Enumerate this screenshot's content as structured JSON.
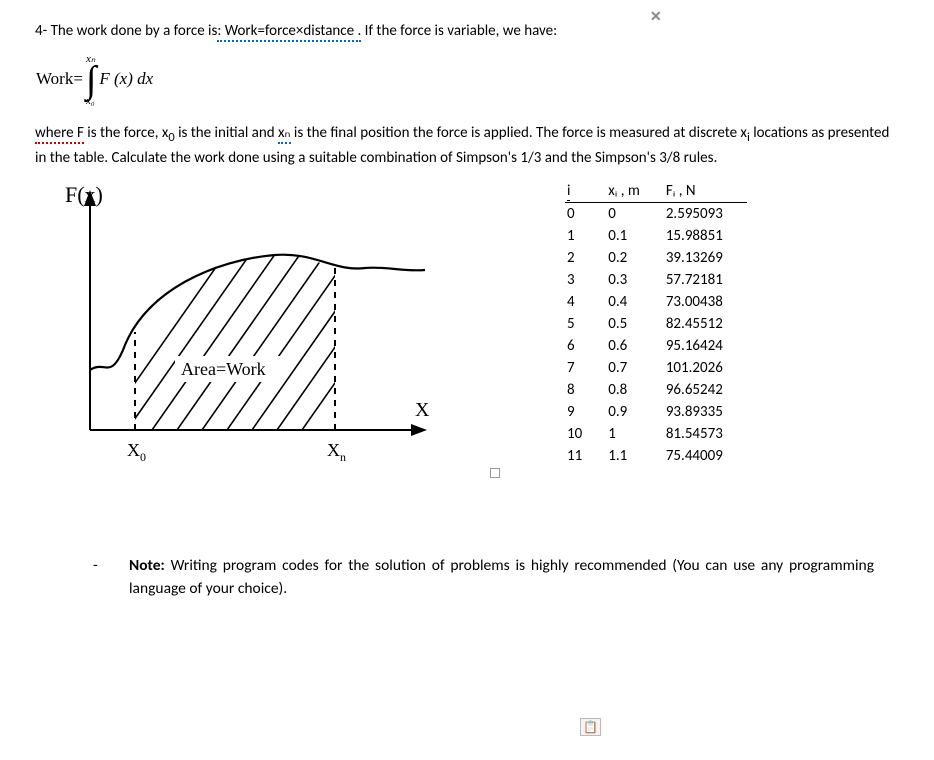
{
  "problem": {
    "number_label": "4-",
    "intro_a": " The work done by a force is",
    "intro_link": ": Work=force×distance .",
    "intro_b": " If the force is variable, we have:",
    "work_eq_lhs": "Work=",
    "integrand": "F (x) dx",
    "int_upper": "xₙ",
    "int_lower": "x₀",
    "para_a": "where F",
    "para_b": " is the force, x",
    "para_c": " is the initial and ",
    "para_xn": "xₙ",
    "para_d": " is the final position the force is applied. The force is measured at discrete x",
    "para_e": " locations as presented in the table. Calculate the work done using a suitable combination of Simpson's 1/3 and the Simpson's 3/8 rules.",
    "sub_0": "0",
    "sub_i": "i"
  },
  "graph": {
    "y_label": "F(x)",
    "x_label": "X",
    "area_label": "Area=Work",
    "x0_label": "X",
    "x0_sub": "0",
    "xn_label": "X",
    "xn_sub": "n",
    "axis_color": "#000000",
    "curve_color": "#000000",
    "hatch_color": "#000000"
  },
  "table": {
    "headers": {
      "i": "i",
      "x": "xᵢ , m",
      "f": "Fᵢ , N"
    },
    "rows": [
      {
        "i": "0",
        "x": "0",
        "f": "2.595093"
      },
      {
        "i": "1",
        "x": "0.1",
        "f": "15.98851"
      },
      {
        "i": "2",
        "x": "0.2",
        "f": "39.13269"
      },
      {
        "i": "3",
        "x": "0.3",
        "f": "57.72181"
      },
      {
        "i": "4",
        "x": "0.4",
        "f": "73.00438"
      },
      {
        "i": "5",
        "x": "0.5",
        "f": "82.45512"
      },
      {
        "i": "6",
        "x": "0.6",
        "f": "95.16424"
      },
      {
        "i": "7",
        "x": "0.7",
        "f": "101.2026"
      },
      {
        "i": "8",
        "x": "0.8",
        "f": "96.65242"
      },
      {
        "i": "9",
        "x": "0.9",
        "f": "93.89335"
      },
      {
        "i": "10",
        "x": "1",
        "f": "81.54573"
      },
      {
        "i": "11",
        "x": "1.1",
        "f": "75.44009"
      }
    ]
  },
  "note": {
    "dash": "-",
    "bold": "Note:",
    "text": " Writing program codes for the solution of problems is highly recommended (You can use any programming language of your choice)."
  },
  "icons": {
    "close": "✕",
    "paste": "📋"
  }
}
